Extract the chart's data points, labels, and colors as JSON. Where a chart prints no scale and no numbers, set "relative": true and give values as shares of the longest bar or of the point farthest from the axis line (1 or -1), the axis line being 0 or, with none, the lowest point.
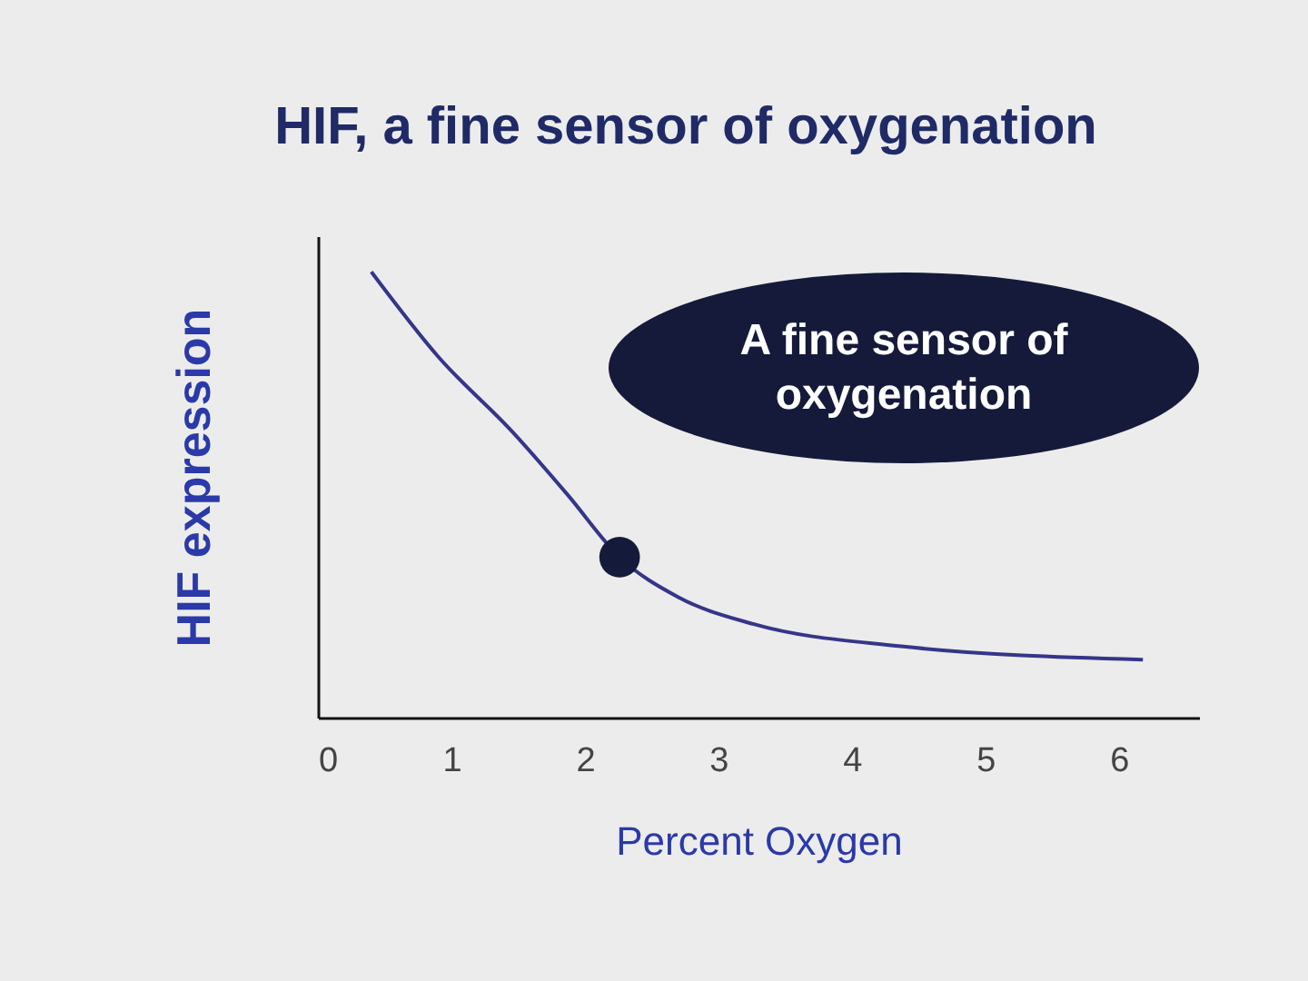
{
  "chart_data": {
    "type": "line",
    "title": "HIF, a fine sensor of oxygenation",
    "xlabel": "Percent Oxygen",
    "ylabel": "HIF expression",
    "relative": true,
    "xlim": [
      0,
      6.6
    ],
    "xticks": [
      0,
      1,
      2,
      3,
      4,
      5,
      6
    ],
    "grid": false,
    "series": [
      {
        "color": "#35358a",
        "x": [
          0.4,
          0.9,
          1.46,
          1.87,
          2.26,
          2.7,
          3.26,
          4.37,
          6.18
        ],
        "values": [
          1.0,
          0.81,
          0.64,
          0.5,
          0.36,
          0.27,
          0.21,
          0.16,
          0.13
        ]
      },
      {
        "type": "scatter",
        "color": "#141a3a",
        "marker": "circle",
        "x": [
          2.26
        ],
        "values": [
          0.36
        ]
      }
    ],
    "annotations": [
      "A fine sensor of oxygenation"
    ]
  }
}
